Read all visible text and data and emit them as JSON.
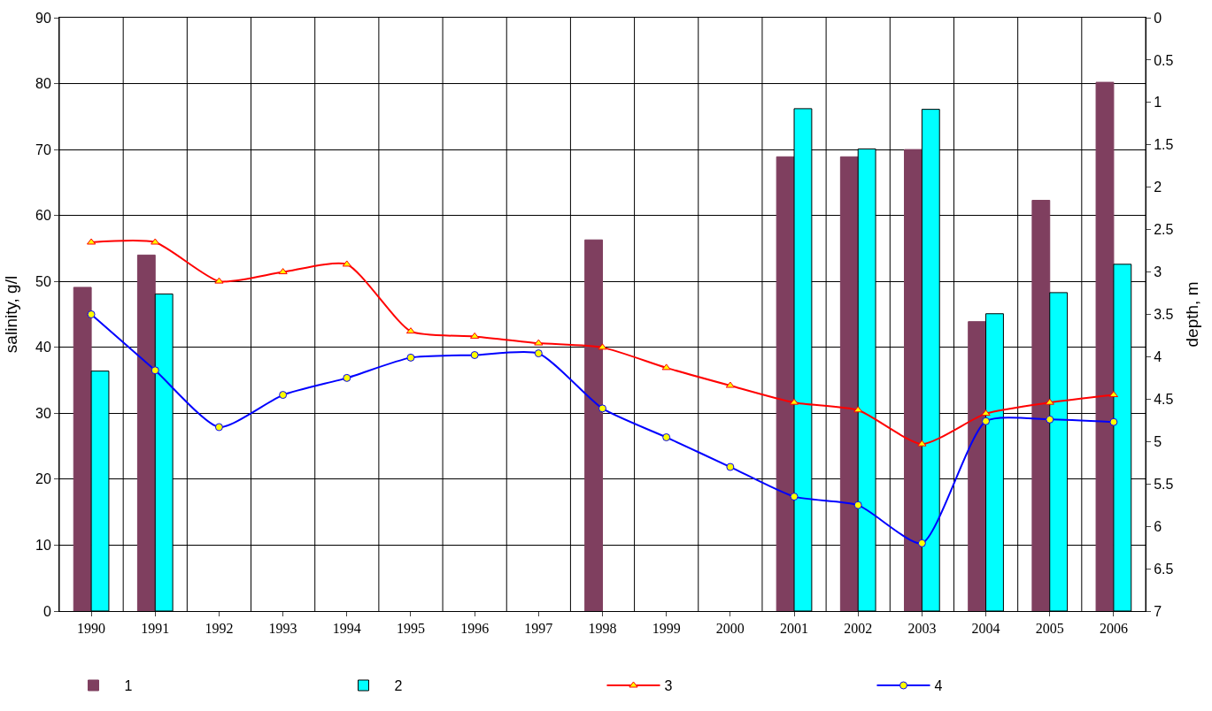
{
  "chart_data": {
    "type": "bar",
    "ylabel": "salinity, g/l",
    "y2label": "depth, m",
    "categories": [
      "1990",
      "1991",
      "1992",
      "1993",
      "1994",
      "1995",
      "1996",
      "1997",
      "1998",
      "1999",
      "2000",
      "2001",
      "2002",
      "2003",
      "2004",
      "2005",
      "2006"
    ],
    "series": [
      {
        "name": "1",
        "color": "#7f3f5f",
        "values": [
          49.1,
          54.0,
          null,
          null,
          null,
          null,
          null,
          null,
          56.3,
          null,
          null,
          68.9,
          68.9,
          70.0,
          43.9,
          62.3,
          80.2
        ]
      },
      {
        "name": "2",
        "color": "#00ffff",
        "values": [
          36.4,
          48.1,
          null,
          null,
          null,
          null,
          null,
          null,
          null,
          null,
          null,
          76.2,
          70.1,
          76.1,
          45.1,
          48.3,
          52.6
        ]
      },
      {
        "name": "3",
        "type": "line",
        "axis": "y2",
        "color": "#ff0000",
        "marker": "triangle",
        "values": [
          2.65,
          2.65,
          3.11,
          3.0,
          2.91,
          3.7,
          3.76,
          3.84,
          3.89,
          4.13,
          4.34,
          4.54,
          4.63,
          5.03,
          4.67,
          4.54,
          4.45
        ]
      },
      {
        "name": "4",
        "type": "line",
        "axis": "y2",
        "color": "#0000ff",
        "marker": "circle",
        "values": [
          3.5,
          4.16,
          4.83,
          4.45,
          4.25,
          4.01,
          3.98,
          3.96,
          4.61,
          4.95,
          5.3,
          5.65,
          5.75,
          6.2,
          4.76,
          4.74,
          4.77
        ]
      }
    ],
    "ylim": [
      0,
      90
    ],
    "yticks": [
      0,
      10,
      20,
      30,
      40,
      50,
      60,
      70,
      80,
      90
    ],
    "y2lim": [
      7,
      0
    ],
    "y2ticks": [
      0,
      0.5,
      1,
      1.5,
      2,
      2.5,
      3,
      3.5,
      4,
      4.5,
      5,
      5.5,
      6,
      6.5,
      7
    ],
    "grid": true,
    "legend": "bottom"
  }
}
